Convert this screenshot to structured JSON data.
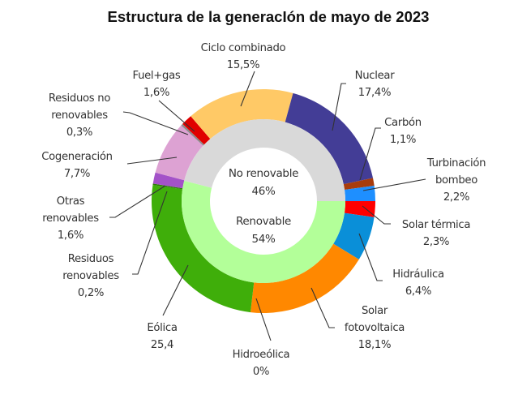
{
  "chart_data": {
    "type": "pie",
    "subtype": "nested-donut",
    "title": "Estructura de la generacIón de mayo de 2023",
    "inner_ring": [
      {
        "name": "No renovable",
        "value": 46,
        "label": "46%",
        "color": "#D9D9D9"
      },
      {
        "name": "Renovable",
        "value": 54,
        "label": "54%",
        "color": "#B3FF99"
      }
    ],
    "outer_ring": [
      {
        "name": "Solar térmica",
        "label_lines": [
          "Solar térmica"
        ],
        "value": 2.3,
        "label": "2,3%",
        "color": "#FF0000",
        "group": "Renovable"
      },
      {
        "name": "Hidráulica",
        "label_lines": [
          "Hidráulica"
        ],
        "value": 6.4,
        "label": "6,4%",
        "color": "#0A8FD8",
        "group": "Renovable"
      },
      {
        "name": "Solar fotovoltaica",
        "label_lines": [
          "Solar",
          "fotovoltaica"
        ],
        "value": 18.1,
        "label": "18,1%",
        "color": "#FF8800",
        "group": "Renovable"
      },
      {
        "name": "Hidroeólica",
        "label_lines": [
          "Hidroeólica"
        ],
        "value": 0,
        "label": "0%",
        "color": "#7FB0E0",
        "group": "Renovable"
      },
      {
        "name": "Eólica",
        "label_lines": [
          "Eólica"
        ],
        "value": 25.4,
        "label": "25,4",
        "color": "#3FAE0A",
        "group": "Renovable"
      },
      {
        "name": "Residuos renovables",
        "label_lines": [
          "Residuos",
          "renovables"
        ],
        "value": 0.2,
        "label": "0,2%",
        "color": "#2E7D0A",
        "group": "Renovable"
      },
      {
        "name": "Otras renovables",
        "label_lines": [
          "Otras",
          "renovables"
        ],
        "value": 1.6,
        "label": "1,6%",
        "color": "#A352C8",
        "group": "Renovable"
      },
      {
        "name": "Cogeneración",
        "label_lines": [
          "Cogeneración"
        ],
        "value": 7.7,
        "label": "7,7%",
        "color": "#DDA2D3",
        "group": "No renovable"
      },
      {
        "name": "Residuos no renovables",
        "label_lines": [
          "Residuos no",
          "renovables"
        ],
        "value": 0.3,
        "label": "0,3%",
        "color": "#8C8C8C",
        "group": "No renovable"
      },
      {
        "name": "Fuel+gas",
        "label_lines": [
          "Fuel+gas"
        ],
        "value": 1.6,
        "label": "1,6%",
        "color": "#E00000",
        "group": "No renovable"
      },
      {
        "name": "Ciclo combinado",
        "label_lines": [
          "Ciclo combinado"
        ],
        "value": 15.5,
        "label": "15,5%",
        "color": "#FFC966",
        "group": "No renovable"
      },
      {
        "name": "Nuclear",
        "label_lines": [
          "Nuclear"
        ],
        "value": 17.4,
        "label": "17,4%",
        "color": "#433D96",
        "group": "No renovable"
      },
      {
        "name": "Carbón",
        "label_lines": [
          "Carbón"
        ],
        "value": 1.1,
        "label": "1,1%",
        "color": "#A83C0C",
        "group": "No renovable"
      },
      {
        "name": "Turbinación bombeo",
        "label_lines": [
          "Turbinación",
          "bombeo"
        ],
        "value": 2.2,
        "label": "2,2%",
        "color": "#1E8FFF",
        "group": "No renovable"
      }
    ],
    "legend": "none (direct labels)",
    "units": "%"
  }
}
